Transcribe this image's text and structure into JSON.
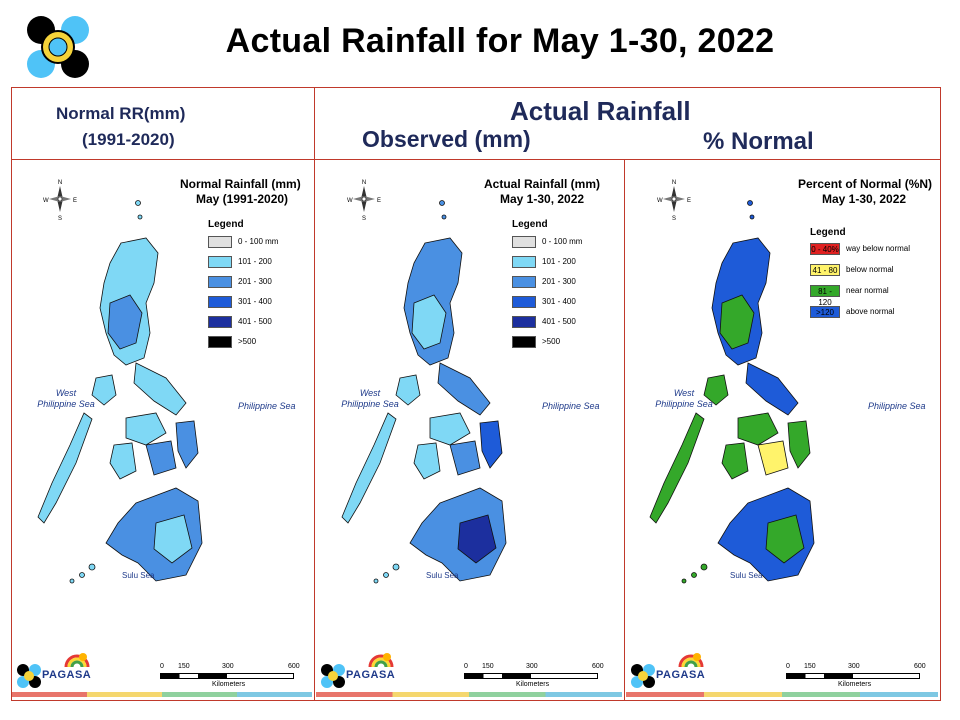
{
  "title": "Actual Rainfall for May 1-30, 2022",
  "headers": {
    "normal_line1": "Normal RR(mm)",
    "normal_line2": "(1991-2020)",
    "actual": "Actual Rainfall",
    "observed": "Observed (mm)",
    "percent": "% Normal"
  },
  "panels": [
    {
      "map_title_line1": "Normal Rainfall (mm)",
      "map_title_line2": "May (1991-2020)",
      "legend_title": "Legend",
      "legend": [
        {
          "label": "0 - 100 mm",
          "color": "#e0e0e0",
          "swatch_text": ""
        },
        {
          "label": "101 - 200",
          "color": "#7fd8f5",
          "swatch_text": ""
        },
        {
          "label": "201 - 300",
          "color": "#4a90e2",
          "swatch_text": ""
        },
        {
          "label": "301 - 400",
          "color": "#1e5bd8",
          "swatch_text": ""
        },
        {
          "label": "401 - 500",
          "color": "#1c2f9e",
          "swatch_text": ""
        },
        {
          "label": ">500",
          "color": "#000000",
          "swatch_text": ""
        }
      ],
      "sea_west_1": "West",
      "sea_west_2": "Philippine Sea",
      "sea_east": "Philippine Sea",
      "sulu": "Sulu Sea",
      "scale_ticks": [
        "0",
        "150",
        "300",
        "600"
      ],
      "scale_unit": "Kilometers",
      "logo_text": "PAGASA"
    },
    {
      "map_title_line1": "Actual Rainfall (mm)",
      "map_title_line2": "May 1-30, 2022",
      "legend_title": "Legend",
      "legend": [
        {
          "label": "0 - 100 mm",
          "color": "#e0e0e0",
          "swatch_text": ""
        },
        {
          "label": "101 - 200",
          "color": "#7fd8f5",
          "swatch_text": ""
        },
        {
          "label": "201 - 300",
          "color": "#4a90e2",
          "swatch_text": ""
        },
        {
          "label": "301 - 400",
          "color": "#1e5bd8",
          "swatch_text": ""
        },
        {
          "label": "401 - 500",
          "color": "#1c2f9e",
          "swatch_text": ""
        },
        {
          "label": ">500",
          "color": "#000000",
          "swatch_text": ""
        }
      ],
      "sea_west_1": "West",
      "sea_west_2": "Philippine Sea",
      "sea_east": "Philippine Sea",
      "sulu": "Sulu Sea",
      "scale_ticks": [
        "0",
        "150",
        "300",
        "600"
      ],
      "scale_unit": "Kilometers",
      "logo_text": "PAGASA"
    },
    {
      "map_title_line1": "Percent of Normal (%N)",
      "map_title_line2": "May 1-30, 2022",
      "legend_title": "Legend",
      "legend": [
        {
          "label": "way below normal",
          "color": "#e02020",
          "swatch_text": "0 - 40%"
        },
        {
          "label": "below normal",
          "color": "#fff36b",
          "swatch_text": "41 - 80"
        },
        {
          "label": "near normal",
          "color": "#34a82a",
          "swatch_text": "81 - 120"
        },
        {
          "label": "above normal",
          "color": "#1e5bd8",
          "swatch_text": ">120"
        }
      ],
      "sea_west_1": "West",
      "sea_west_2": "Philippine Sea",
      "sea_east": "Philippine Sea",
      "sulu": "Sulu Sea",
      "scale_ticks": [
        "0",
        "150",
        "300",
        "600"
      ],
      "scale_unit": "Kilometers",
      "logo_text": "PAGASA"
    }
  ],
  "colors": {
    "frame": "#c0392b",
    "header_text": "#1f2a5a",
    "light_blue": "#7fd8f5",
    "mid_blue": "#4a90e2",
    "dark_blue": "#1e5bd8",
    "navy": "#1c2f9e",
    "green": "#34a82a",
    "yellow": "#fff36b"
  }
}
